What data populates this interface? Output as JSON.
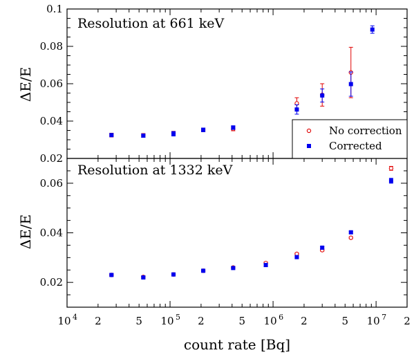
{
  "chart_data": [
    {
      "type": "scatter",
      "title": "Resolution at 661 keV",
      "xlabel": "count rate [Bq]",
      "ylabel": "ΔE/E",
      "xscale": "log",
      "xlim": [
        10000,
        20000000
      ],
      "ylim": [
        0.02,
        0.1
      ],
      "yticks": [
        0.02,
        0.04,
        0.06,
        0.08,
        0.1
      ],
      "ytick_labels": [
        "0.02",
        "0.04",
        "0.06",
        "0.08",
        "0.1"
      ],
      "legend": "bottom-right",
      "series": [
        {
          "name": "No correction",
          "color": "#e00000",
          "marker": "circle-open",
          "points": [
            {
              "x": 27000,
              "y": 0.0325,
              "err": 0.001
            },
            {
              "x": 55000,
              "y": 0.0323,
              "err": 0.001
            },
            {
              "x": 108000,
              "y": 0.0335,
              "err": 0.001
            },
            {
              "x": 210000,
              "y": 0.0353,
              "err": 0.001
            },
            {
              "x": 410000,
              "y": 0.0358,
              "err": 0.001
            },
            {
              "x": 1700000,
              "y": 0.0495,
              "err": 0.003
            },
            {
              "x": 3000000,
              "y": 0.054,
              "err": 0.006
            },
            {
              "x": 5700000,
              "y": 0.066,
              "err": 0.0135
            }
          ]
        },
        {
          "name": "Corrected",
          "color": "#0000ee",
          "marker": "square-filled",
          "points": [
            {
              "x": 27000,
              "y": 0.0325,
              "err": 0.0008
            },
            {
              "x": 55000,
              "y": 0.0322,
              "err": 0.0008
            },
            {
              "x": 108000,
              "y": 0.0332,
              "err": 0.0012
            },
            {
              "x": 210000,
              "y": 0.0353,
              "err": 0.001
            },
            {
              "x": 410000,
              "y": 0.0365,
              "err": 0.001
            },
            {
              "x": 1700000,
              "y": 0.0462,
              "err": 0.0025
            },
            {
              "x": 3000000,
              "y": 0.0537,
              "err": 0.0035
            },
            {
              "x": 5700000,
              "y": 0.0598,
              "err": 0.0065
            },
            {
              "x": 9200000,
              "y": 0.089,
              "err": 0.002
            }
          ]
        }
      ]
    },
    {
      "type": "scatter",
      "title": "Resolution at 1332 keV",
      "xlabel": "count rate [Bq]",
      "ylabel": "ΔE/E",
      "xscale": "log",
      "xlim": [
        10000,
        20000000
      ],
      "ylim": [
        0.01,
        0.07
      ],
      "yticks": [
        0.02,
        0.04,
        0.06
      ],
      "ytick_labels": [
        "0.02",
        "0.04",
        "0.06"
      ],
      "xtick_labels": [
        "10^4",
        "2",
        "5",
        "10^5",
        "2",
        "5",
        "10^6",
        "2",
        "5",
        "10^7",
        "2"
      ],
      "series": [
        {
          "name": "No correction",
          "color": "#e00000",
          "marker": "circle-open",
          "points": [
            {
              "x": 27000,
              "y": 0.023,
              "err": 0.0004
            },
            {
              "x": 55000,
              "y": 0.0222,
              "err": 0.0004
            },
            {
              "x": 108000,
              "y": 0.0232,
              "err": 0.0004
            },
            {
              "x": 210000,
              "y": 0.0247,
              "err": 0.0004
            },
            {
              "x": 410000,
              "y": 0.026,
              "err": 0.0004
            },
            {
              "x": 850000,
              "y": 0.0278,
              "err": 0.0004
            },
            {
              "x": 1700000,
              "y": 0.0315,
              "err": 0.0004
            },
            {
              "x": 3000000,
              "y": 0.033,
              "err": 0.0004
            },
            {
              "x": 5700000,
              "y": 0.038,
              "err": 0.0004
            },
            {
              "x": 14000000,
              "y": 0.066,
              "err": 0.0008
            }
          ]
        },
        {
          "name": "Corrected",
          "color": "#0000ee",
          "marker": "square-filled",
          "points": [
            {
              "x": 27000,
              "y": 0.023,
              "err": 0.0005
            },
            {
              "x": 55000,
              "y": 0.022,
              "err": 0.0005
            },
            {
              "x": 108000,
              "y": 0.0232,
              "err": 0.0004
            },
            {
              "x": 210000,
              "y": 0.0247,
              "err": 0.0004
            },
            {
              "x": 410000,
              "y": 0.0258,
              "err": 0.0004
            },
            {
              "x": 850000,
              "y": 0.027,
              "err": 0.0006
            },
            {
              "x": 1700000,
              "y": 0.0302,
              "err": 0.0004
            },
            {
              "x": 3000000,
              "y": 0.034,
              "err": 0.0004
            },
            {
              "x": 5700000,
              "y": 0.0402,
              "err": 0.0004
            },
            {
              "x": 14000000,
              "y": 0.061,
              "err": 0.001
            }
          ]
        }
      ]
    }
  ]
}
